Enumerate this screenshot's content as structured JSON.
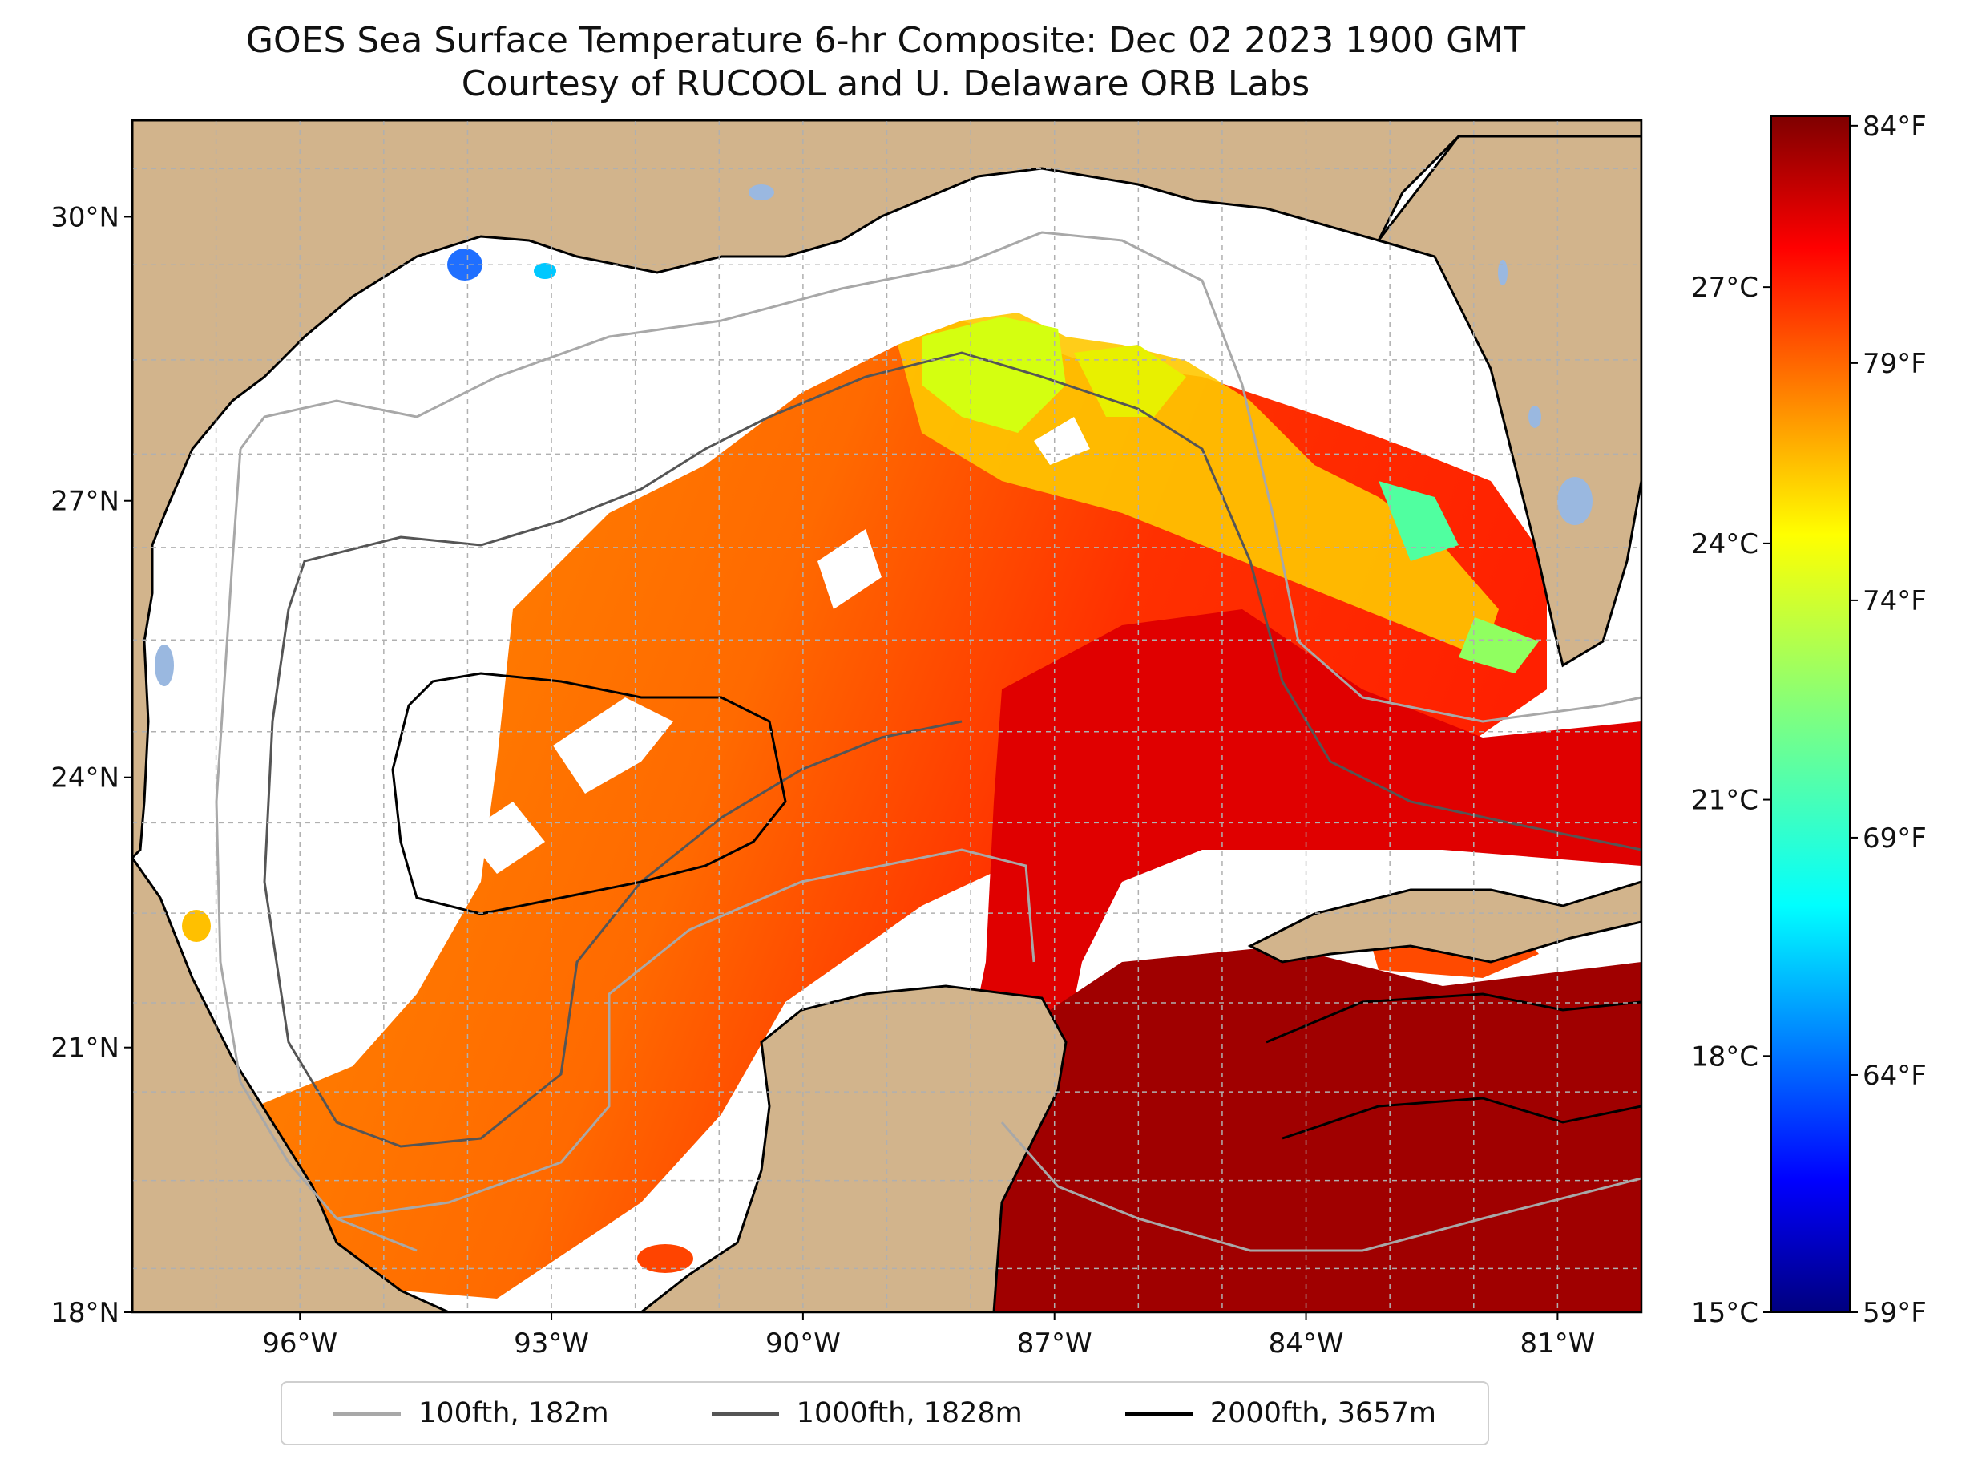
{
  "title": "GOES Sea Surface Temperature 6-hr Composite: Dec 02 2023 1900 GMT",
  "subtitle": "Courtesy of RUCOOL and U. Delaware ORB Labs",
  "map": {
    "lon_range": [
      -98,
      -80
    ],
    "lat_range": [
      18,
      31
    ],
    "lat_ticks": [
      "30°N",
      "27°N",
      "24°N",
      "21°N",
      "18°N"
    ],
    "lat_values": [
      30,
      27,
      24,
      21,
      18
    ],
    "lon_ticks": [
      "96°W",
      "93°W",
      "90°W",
      "87°W",
      "84°W",
      "81°W"
    ],
    "lon_values": [
      -96,
      -93,
      -90,
      -87,
      -84,
      -81
    ],
    "land_color": "#d2b48c",
    "lake_color": "#9ab8e0"
  },
  "colorbar": {
    "celsius_ticks": [
      "27°C",
      "24°C",
      "21°C",
      "18°C",
      "15°C"
    ],
    "celsius_values": [
      27,
      24,
      21,
      18,
      15
    ],
    "fahrenheit_ticks": [
      "84°F",
      "79°F",
      "74°F",
      "69°F",
      "64°F",
      "59°F"
    ],
    "fahrenheit_values": [
      84,
      79,
      74,
      69,
      64,
      59
    ],
    "range_c": [
      15,
      29
    ],
    "colormap": "jet"
  },
  "legend": [
    {
      "label": "100fth, 182m",
      "color": "#a8a8a8"
    },
    {
      "label": "1000fth, 1828m",
      "color": "#555555"
    },
    {
      "label": "2000fth, 3657m",
      "color": "#000000"
    }
  ]
}
